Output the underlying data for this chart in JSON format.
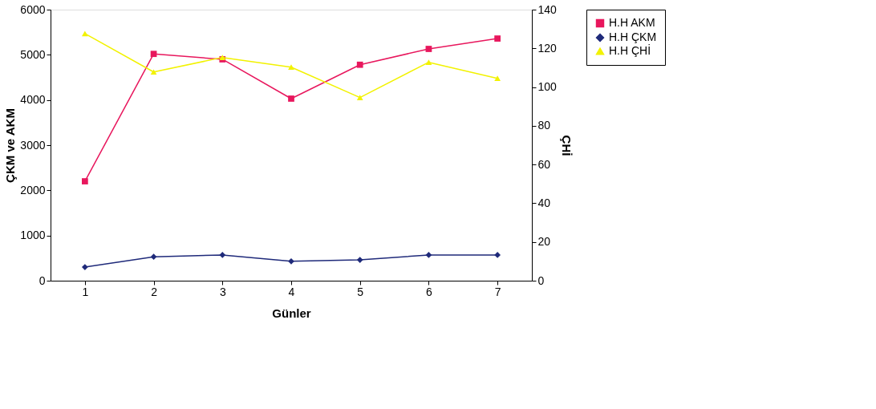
{
  "chart_data": {
    "type": "line",
    "xlabel": "Günler",
    "ylabel": "ÇKM ve AKM",
    "y2label": "ÇHİ",
    "categories": [
      "1",
      "2",
      "3",
      "4",
      "5",
      "6",
      "7"
    ],
    "ylim": [
      0,
      6000
    ],
    "yticks": [
      0,
      1000,
      2000,
      3000,
      4000,
      5000,
      6000
    ],
    "y2lim": [
      0,
      140
    ],
    "y2ticks": [
      0,
      20,
      40,
      60,
      80,
      100,
      120,
      140
    ],
    "grid": false,
    "legend": "right",
    "line_style": "solid",
    "series": [
      {
        "name": "H.H AKM",
        "color": "#e8175d",
        "marker": "square",
        "values": [
          2200,
          5020,
          4900,
          4030,
          4780,
          5130,
          5360
        ]
      },
      {
        "name": "H.H ÇKM",
        "color": "#1f2a7a",
        "marker": "diamond",
        "values": [
          300,
          530,
          570,
          430,
          460,
          570,
          570
        ]
      },
      {
        "name": "H.H ÇHİ",
        "color": "#f2f200",
        "marker": "triangle",
        "axis": "y2",
        "values": [
          127.6,
          107.8,
          115.3,
          110.3,
          94.6,
          112.8,
          104.5
        ]
      }
    ]
  }
}
